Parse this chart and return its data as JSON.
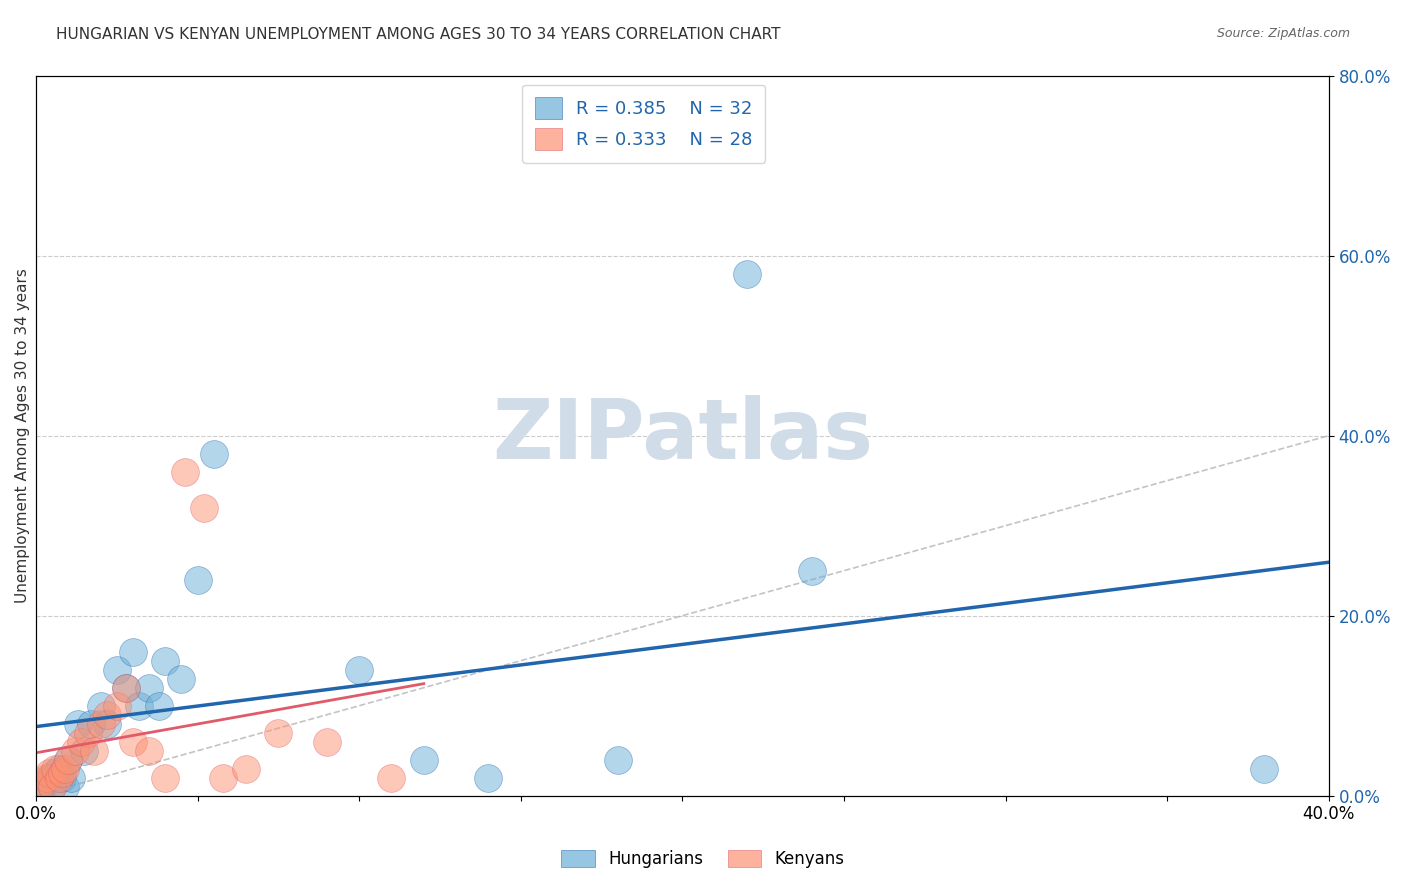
{
  "title": "HUNGARIAN VS KENYAN UNEMPLOYMENT AMONG AGES 30 TO 34 YEARS CORRELATION CHART",
  "source": "Source: ZipAtlas.com",
  "ylabel": "Unemployment Among Ages 30 to 34 years",
  "xlabel": "",
  "xlim": [
    0.0,
    0.4
  ],
  "ylim": [
    0.0,
    0.8
  ],
  "xticks": [
    0.0,
    0.05,
    0.1,
    0.15,
    0.2,
    0.25,
    0.3,
    0.35,
    0.4
  ],
  "yticks": [
    0.0,
    0.2,
    0.4,
    0.6,
    0.8
  ],
  "ytick_labels_right": [
    "0.0%",
    "20.0%",
    "40.0%",
    "60.0%",
    "80.0%"
  ],
  "xtick_labels": [
    "0.0%",
    "",
    "",
    "",
    "",
    "",
    "",
    "",
    "40.0%"
  ],
  "legend_r_blue": "R = 0.385",
  "legend_n_blue": "N = 32",
  "legend_r_pink": "R = 0.333",
  "legend_n_pink": "N = 28",
  "blue_color": "#6baed6",
  "pink_color": "#fc9272",
  "blue_line_color": "#2166ac",
  "pink_line_color": "#e05a6a",
  "watermark": "ZIPatlas",
  "watermark_color": "#d0dce8",
  "background_color": "#ffffff",
  "grid_color": "#cccccc",
  "title_fontsize": 11,
  "hungarian_x": [
    0.002,
    0.003,
    0.004,
    0.005,
    0.006,
    0.007,
    0.008,
    0.009,
    0.01,
    0.011,
    0.013,
    0.015,
    0.017,
    0.02,
    0.022,
    0.025,
    0.028,
    0.03,
    0.032,
    0.035,
    0.038,
    0.04,
    0.045,
    0.05,
    0.055,
    0.1,
    0.12,
    0.14,
    0.18,
    0.22,
    0.24,
    0.38
  ],
  "hungarian_y": [
    0.01,
    0.015,
    0.02,
    0.01,
    0.025,
    0.03,
    0.02,
    0.01,
    0.04,
    0.02,
    0.08,
    0.05,
    0.08,
    0.1,
    0.08,
    0.14,
    0.12,
    0.16,
    0.1,
    0.12,
    0.1,
    0.15,
    0.13,
    0.24,
    0.38,
    0.14,
    0.04,
    0.02,
    0.04,
    0.58,
    0.25,
    0.03
  ],
  "kenyan_x": [
    0.001,
    0.002,
    0.003,
    0.004,
    0.005,
    0.006,
    0.007,
    0.008,
    0.009,
    0.01,
    0.012,
    0.014,
    0.016,
    0.018,
    0.02,
    0.022,
    0.025,
    0.028,
    0.03,
    0.035,
    0.04,
    0.046,
    0.052,
    0.058,
    0.065,
    0.075,
    0.09,
    0.11
  ],
  "kenyan_y": [
    0.01,
    0.015,
    0.02,
    0.025,
    0.01,
    0.03,
    0.02,
    0.025,
    0.03,
    0.04,
    0.05,
    0.06,
    0.07,
    0.05,
    0.08,
    0.09,
    0.1,
    0.12,
    0.06,
    0.05,
    0.02,
    0.36,
    0.32,
    0.02,
    0.03,
    0.07,
    0.06,
    0.02
  ]
}
